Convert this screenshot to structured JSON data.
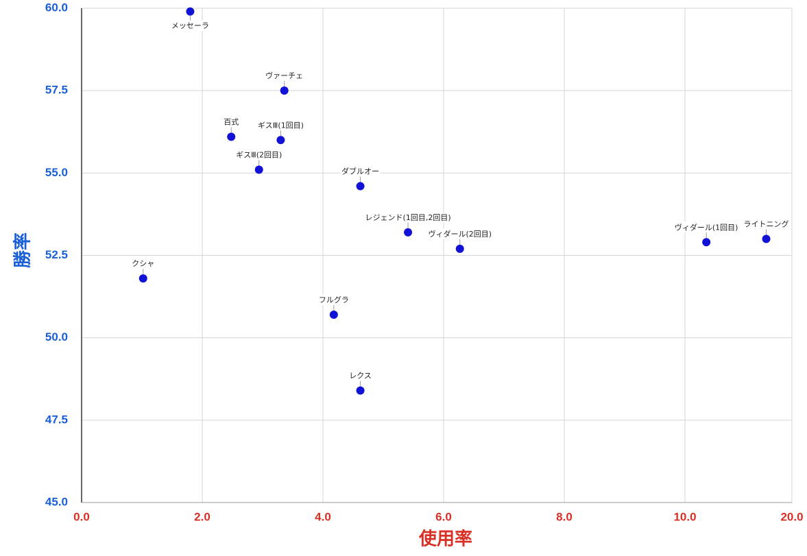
{
  "chart_data": {
    "type": "scatter",
    "x_label": "使用率",
    "y_label": "勝率",
    "x": [
      1.8,
      3.36,
      2.48,
      3.3,
      2.94,
      4.62,
      5.41,
      6.27,
      12.0,
      17.6,
      1.02,
      4.18,
      4.62
    ],
    "labels": [
      "メッセーラ",
      "ヴァーチェ",
      "百式",
      "ギスⅢ(1回目)",
      "ギスⅢ(2回目)",
      "ダブルオー",
      "レジェンド(1回目,2回目)",
      "ヴィダール(2回目)",
      "ヴィダール(1回目)",
      "ライトニング",
      "クシャ",
      "フルグラ",
      "レクス"
    ],
    "series": [
      {
        "color": "#1212d6",
        "values": [
          59.9,
          57.5,
          56.1,
          56.0,
          55.1,
          54.6,
          53.2,
          52.7,
          52.9,
          53.0,
          51.8,
          50.7,
          48.4
        ]
      }
    ],
    "xlim": [
      0,
      20
    ],
    "xticks": [
      {
        "value": 0,
        "label": "0.0"
      },
      {
        "value": 2,
        "label": "2.0"
      },
      {
        "value": 4,
        "label": "4.0"
      },
      {
        "value": 6,
        "label": "6.0"
      },
      {
        "value": 8,
        "label": "8.0"
      },
      {
        "value": 10,
        "label": "10.0"
      },
      {
        "value": 20,
        "label": "20.0"
      }
    ],
    "ylim": [
      45,
      60
    ],
    "yticks": [
      {
        "value": 45,
        "label": "45.0"
      },
      47.5,
      {
        "value": 50,
        "label": "50.0"
      },
      52.5,
      {
        "value": 55,
        "label": "55.0"
      },
      57.5,
      {
        "value": 60,
        "label": "60.0"
      }
    ],
    "grid": true,
    "x_axis_color": "#d93025",
    "y_axis_color": "#1a5fd6"
  }
}
